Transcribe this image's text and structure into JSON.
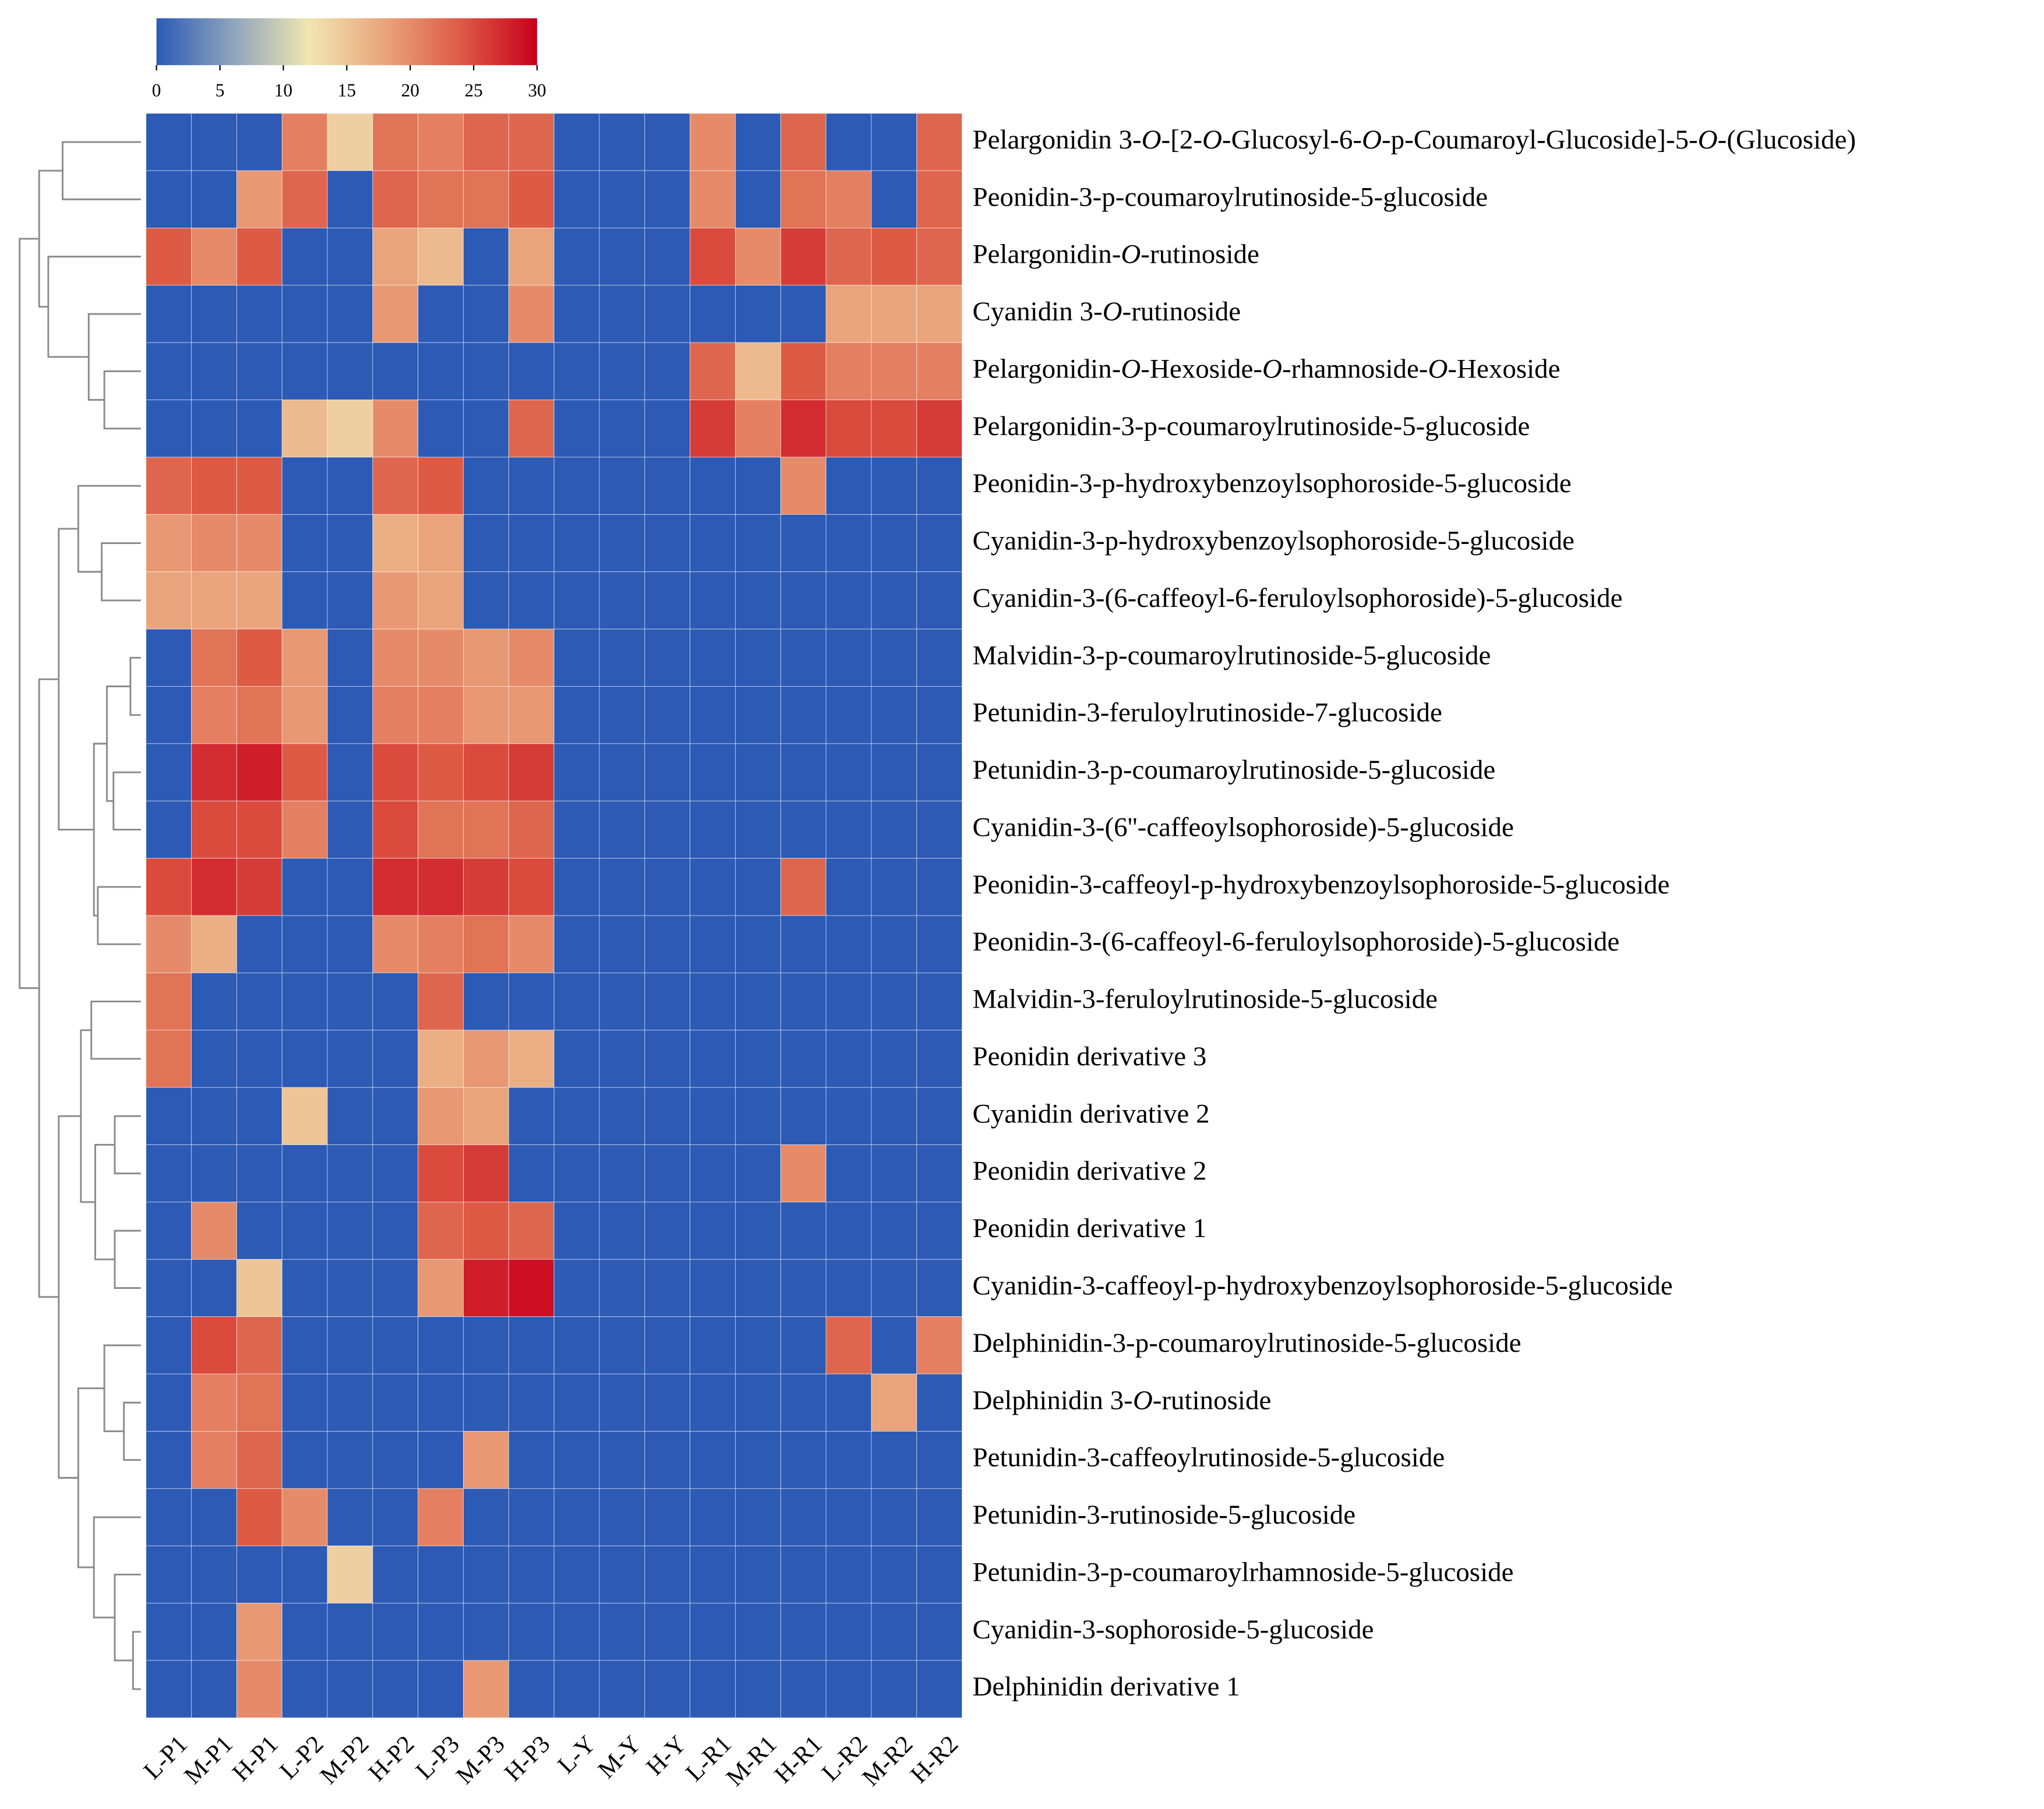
{
  "chart_data": {
    "type": "heatmap",
    "categories": [
      "L-P1",
      "M-P1",
      "H-P1",
      "L-P2",
      "M-P2",
      "H-P2",
      "L-P3",
      "M-P3",
      "H-P3",
      "L-Y",
      "M-Y",
      "H-Y",
      "L-R1",
      "M-R1",
      "H-R1",
      "L-R2",
      "M-R2",
      "H-R2"
    ],
    "rows": [
      "Pelargonidin 3-O-[2-O-Glucosyl-6-O-p-Coumaroyl-Glucoside]-5-O-(Glucoside)",
      "Peonidin-3-p-coumaroylrutinoside-5-glucoside",
      "Pelargonidin-O-rutinoside",
      "Cyanidin 3-O-rutinoside",
      "Pelargonidin-O-Hexoside-O-rhamnoside-O-Hexoside",
      "Pelargonidin-3-p-coumaroylrutinoside-5-glucoside",
      "Peonidin-3-p-hydroxybenzoylsophoroside-5-glucoside",
      "Cyanidin-3-p-hydroxybenzoylsophoroside-5-glucoside",
      "Cyanidin-3-(6-caffeoyl-6-feruloylsophoroside)-5-glucoside",
      "Malvidin-3-p-coumaroylrutinoside-5-glucoside",
      "Petunidin-3-feruloylrutinoside-7-glucoside",
      "Petunidin-3-p-coumaroylrutinoside-5-glucoside",
      "Cyanidin-3-(6''-caffeoylsophoroside)-5-glucoside",
      "Peonidin-3-caffeoyl-p-hydroxybenzoylsophoroside-5-glucoside",
      "Peonidin-3-(6-caffeoyl-6-feruloylsophoroside)-5-glucoside",
      "Malvidin-3-feruloylrutinoside-5-glucoside",
      "Peonidin derivative 3",
      "Cyanidin derivative 2",
      "Peonidin derivative 2",
      "Peonidin derivative 1",
      "Cyanidin-3-caffeoyl-p-hydroxybenzoylsophoroside-5-glucoside",
      "Delphinidin-3-p-coumaroylrutinoside-5-glucoside",
      "Delphinidin 3-O-rutinoside",
      "Petunidin-3-caffeoylrutinoside-5-glucoside",
      "Petunidin-3-rutinoside-5-glucoside",
      "Petunidin-3-p-coumaroylrhamnoside-5-glucoside",
      "Cyanidin-3-sophoroside-5-glucoside",
      "Delphinidin derivative 1"
    ],
    "values": [
      [
        0,
        0,
        0,
        21,
        14,
        22,
        21,
        23,
        23,
        0,
        0,
        0,
        20,
        0,
        23,
        0,
        0,
        23
      ],
      [
        0,
        0,
        19,
        23,
        0,
        23,
        22,
        22,
        24,
        0,
        0,
        0,
        20,
        0,
        22,
        21,
        0,
        23
      ],
      [
        24,
        20,
        24,
        0,
        0,
        18,
        16,
        0,
        18,
        0,
        0,
        0,
        25,
        20,
        26,
        23,
        24,
        23
      ],
      [
        0,
        0,
        0,
        0,
        0,
        19,
        0,
        0,
        20,
        0,
        0,
        0,
        0,
        0,
        0,
        18,
        18,
        18
      ],
      [
        0,
        0,
        0,
        0,
        0,
        0,
        0,
        0,
        0,
        0,
        0,
        0,
        23,
        16,
        24,
        21,
        21,
        21
      ],
      [
        0,
        0,
        0,
        16,
        14,
        20,
        0,
        0,
        23,
        0,
        0,
        0,
        26,
        21,
        27,
        25,
        25,
        26
      ],
      [
        23,
        24,
        24,
        0,
        0,
        23,
        24,
        0,
        0,
        0,
        0,
        0,
        0,
        0,
        20,
        0,
        0,
        0
      ],
      [
        19,
        20,
        20,
        0,
        0,
        17,
        18,
        0,
        0,
        0,
        0,
        0,
        0,
        0,
        0,
        0,
        0,
        0
      ],
      [
        18,
        18,
        18,
        0,
        0,
        19,
        18,
        0,
        0,
        0,
        0,
        0,
        0,
        0,
        0,
        0,
        0,
        0
      ],
      [
        0,
        22,
        24,
        19,
        0,
        20,
        20,
        19,
        20,
        0,
        0,
        0,
        0,
        0,
        0,
        0,
        0,
        0
      ],
      [
        0,
        21,
        22,
        19,
        0,
        21,
        21,
        19,
        19,
        0,
        0,
        0,
        0,
        0,
        0,
        0,
        0,
        0
      ],
      [
        0,
        27,
        28,
        24,
        0,
        25,
        24,
        25,
        26,
        0,
        0,
        0,
        0,
        0,
        0,
        0,
        0,
        0
      ],
      [
        0,
        25,
        25,
        21,
        0,
        25,
        22,
        22,
        23,
        0,
        0,
        0,
        0,
        0,
        0,
        0,
        0,
        0
      ],
      [
        25,
        27,
        26,
        0,
        0,
        27,
        27,
        26,
        25,
        0,
        0,
        0,
        0,
        0,
        23,
        0,
        0,
        0
      ],
      [
        20,
        17,
        0,
        0,
        0,
        20,
        21,
        22,
        20,
        0,
        0,
        0,
        0,
        0,
        0,
        0,
        0,
        0
      ],
      [
        22,
        0,
        0,
        0,
        0,
        0,
        23,
        0,
        0,
        0,
        0,
        0,
        0,
        0,
        0,
        0,
        0,
        0
      ],
      [
        22,
        0,
        0,
        0,
        0,
        0,
        17,
        19,
        17,
        0,
        0,
        0,
        0,
        0,
        0,
        0,
        0,
        0
      ],
      [
        0,
        0,
        0,
        15,
        0,
        0,
        19,
        18,
        0,
        0,
        0,
        0,
        0,
        0,
        0,
        0,
        0,
        0
      ],
      [
        0,
        0,
        0,
        0,
        0,
        0,
        25,
        26,
        0,
        0,
        0,
        0,
        0,
        0,
        20,
        0,
        0,
        0
      ],
      [
        0,
        20,
        0,
        0,
        0,
        0,
        23,
        24,
        23,
        0,
        0,
        0,
        0,
        0,
        0,
        0,
        0,
        0
      ],
      [
        0,
        0,
        15,
        0,
        0,
        0,
        19,
        28,
        29,
        0,
        0,
        0,
        0,
        0,
        0,
        0,
        0,
        0
      ],
      [
        0,
        25,
        23,
        0,
        0,
        0,
        0,
        0,
        0,
        0,
        0,
        0,
        0,
        0,
        0,
        23,
        0,
        21
      ],
      [
        0,
        21,
        22,
        0,
        0,
        0,
        0,
        0,
        0,
        0,
        0,
        0,
        0,
        0,
        0,
        0,
        18,
        0
      ],
      [
        0,
        21,
        23,
        0,
        0,
        0,
        0,
        19,
        0,
        0,
        0,
        0,
        0,
        0,
        0,
        0,
        0,
        0
      ],
      [
        0,
        0,
        24,
        20,
        0,
        0,
        21,
        0,
        0,
        0,
        0,
        0,
        0,
        0,
        0,
        0,
        0,
        0
      ],
      [
        0,
        0,
        0,
        0,
        14,
        0,
        0,
        0,
        0,
        0,
        0,
        0,
        0,
        0,
        0,
        0,
        0,
        0
      ],
      [
        0,
        0,
        19,
        0,
        0,
        0,
        0,
        0,
        0,
        0,
        0,
        0,
        0,
        0,
        0,
        0,
        0,
        0
      ],
      [
        0,
        0,
        20,
        0,
        0,
        0,
        0,
        19,
        0,
        0,
        0,
        0,
        0,
        0,
        0,
        0,
        0,
        0
      ]
    ],
    "colormap": [
      "#2c5ab5",
      "#8ea3bd",
      "#f0e6b2",
      "#eaa47c",
      "#dd5a45",
      "#c8001c"
    ],
    "clim": [
      0,
      30
    ],
    "cticks": [
      0,
      5,
      10,
      15,
      20,
      25,
      30
    ]
  }
}
